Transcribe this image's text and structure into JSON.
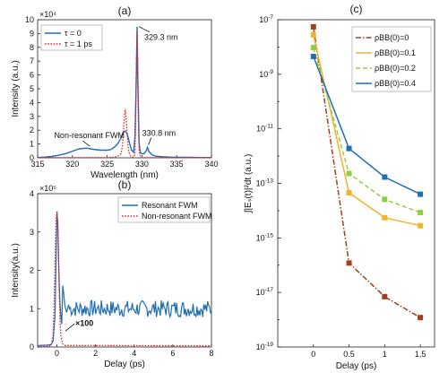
{
  "chart_data": [
    {
      "id": "a",
      "panel_label": "(a)",
      "type": "line",
      "xlabel": "Wavelength (nm)",
      "ylabel": "Intensity (a.u.)",
      "y_exponent": "×10⁴",
      "xlim": [
        315,
        340
      ],
      "ylim": [
        0,
        10
      ],
      "xticks": [
        315,
        320,
        325,
        330,
        335,
        340
      ],
      "yticks": [
        0,
        1,
        2,
        3,
        4,
        5,
        6,
        7,
        8,
        9,
        10
      ],
      "series": [
        {
          "name": "τ = 0",
          "color": "#1f6fb2",
          "style": "solid",
          "x": [
            315,
            316,
            317,
            318,
            319,
            320,
            321,
            322,
            323,
            324,
            325,
            325.5,
            326,
            326.5,
            327,
            327.3,
            327.6,
            327.9,
            328.2,
            328.5,
            328.8,
            329.0,
            329.2,
            329.3,
            329.4,
            329.6,
            329.8,
            330.0,
            330.3,
            330.6,
            330.8,
            331.0,
            331.5,
            332,
            333,
            334,
            335,
            336,
            337,
            338,
            339,
            340
          ],
          "y": [
            0.02,
            0.05,
            0.1,
            0.18,
            0.3,
            0.48,
            0.65,
            0.7,
            0.62,
            0.55,
            0.55,
            0.6,
            0.75,
            1.0,
            1.45,
            1.85,
            1.95,
            1.7,
            1.1,
            0.55,
            0.4,
            1.5,
            6.0,
            9.5,
            6.0,
            1.0,
            0.35,
            0.3,
            0.3,
            0.5,
            0.75,
            0.45,
            0.2,
            0.12,
            0.08,
            0.05,
            0.04,
            0.03,
            0.03,
            0.02,
            0.02,
            0.02
          ]
        },
        {
          "name": "τ = 1 ps",
          "color": "#e8262a",
          "style": "dotted",
          "x": [
            315,
            320,
            324,
            325,
            326,
            326.5,
            327,
            327.2,
            327.4,
            327.6,
            327.8,
            328.0,
            328.2,
            328.4,
            328.6,
            328.8,
            329.0,
            329.1,
            329.2,
            329.3,
            329.4,
            329.5,
            329.6,
            329.8,
            330.0,
            331,
            335,
            340
          ],
          "y": [
            0.01,
            0.01,
            0.01,
            0.02,
            0.05,
            0.1,
            0.3,
            0.9,
            2.5,
            3.5,
            2.4,
            0.8,
            0.3,
            0.1,
            0.05,
            0.05,
            0.3,
            2.5,
            7.0,
            9.2,
            7.0,
            2.5,
            0.5,
            0.05,
            0.02,
            0.01,
            0.01,
            0.01
          ]
        }
      ],
      "annotations": [
        {
          "text": "329.3 nm",
          "x": 329.3,
          "y": 9.5
        },
        {
          "text": "330.8 nm",
          "x": 330.8,
          "y": 0.8
        },
        {
          "text": "Non-resonant FWM",
          "x": 321.5,
          "y": 0.7
        }
      ]
    },
    {
      "id": "b",
      "panel_label": "(b)",
      "type": "line",
      "xlabel": "Delay (ps)",
      "ylabel": "Intensity(a.u.)",
      "y_exponent": "×10⁵",
      "xlim": [
        -1,
        8
      ],
      "ylim": [
        0,
        4
      ],
      "xticks": [
        0,
        2,
        4,
        6,
        8
      ],
      "yticks": [
        0,
        1,
        2,
        3,
        4
      ],
      "series": [
        {
          "name": "Resonant FWM",
          "color": "#1f6fb2",
          "style": "solid",
          "baseline": 1.0,
          "noise": 0.22,
          "start": 0.6,
          "x": [
            -1,
            -0.5,
            -0.3,
            -0.2,
            -0.1,
            -0.05,
            0,
            0.05,
            0.1,
            0.15,
            0.2,
            0.25,
            0.3,
            0.35,
            0.4,
            0.5,
            0.6
          ],
          "y": [
            0.04,
            0.05,
            0.06,
            0.15,
            0.8,
            2.2,
            3.5,
            3.2,
            2.0,
            1.2,
            0.8,
            0.6,
            1.6,
            1.4,
            1.1,
            0.9,
            1.1
          ]
        },
        {
          "name": "Non-resonant FWM",
          "color": "#e8262a",
          "style": "dotted",
          "x": [
            -1,
            -0.4,
            -0.3,
            -0.2,
            -0.15,
            -0.1,
            -0.05,
            0,
            0.05,
            0.1,
            0.15,
            0.2,
            0.3,
            0.4,
            8
          ],
          "y": [
            0.02,
            0.02,
            0.05,
            0.3,
            1.0,
            2.2,
            3.3,
            3.55,
            3.0,
            1.8,
            0.8,
            0.3,
            0.08,
            0.04,
            0.03
          ]
        }
      ],
      "annotations": [
        {
          "text": "×100",
          "x": 0.9,
          "y": 0.6
        }
      ]
    },
    {
      "id": "c",
      "panel_label": "(c)",
      "type": "line",
      "xlabel": "Delay (ps)",
      "ylabel": "∫|Eₛ(t)|²dt (a.u.)",
      "yscale": "log",
      "xlim": [
        -0.5,
        1.7
      ],
      "ylim_exp": [
        -19,
        -7
      ],
      "xticks": [
        0,
        0.5,
        1,
        1.5
      ],
      "yticks_exp": [
        -19,
        -17,
        -15,
        -13,
        -11,
        -9,
        -7
      ],
      "series": [
        {
          "name": "ρBB(0)=0",
          "color": "#a0401f",
          "style": "dashdot",
          "x": [
            0,
            0.5,
            1,
            1.5
          ],
          "y": [
            5.5e-08,
            1.2e-16,
            7e-18,
            1.2e-18
          ]
        },
        {
          "name": "ρBB(0)=0.1",
          "color": "#f0b52c",
          "style": "solid",
          "x": [
            0,
            0.5,
            1,
            1.5
          ],
          "y": [
            2.8e-08,
            4.5e-14,
            5.5e-15,
            2.8e-15
          ]
        },
        {
          "name": "ρBB(0)=0.2",
          "color": "#8fcf45",
          "style": "dashed",
          "x": [
            0,
            0.5,
            1,
            1.5
          ],
          "y": [
            9.5e-09,
            2.3e-13,
            2.6e-14,
            8.5e-15
          ]
        },
        {
          "name": "ρBB(0)=0.4",
          "color": "#1f6fb2",
          "style": "solid",
          "x": [
            0,
            0.5,
            1,
            1.5
          ],
          "y": [
            4.5e-09,
            1.9e-12,
            1.7e-13,
            4e-14
          ]
        }
      ],
      "legend_position": "top-right"
    }
  ]
}
